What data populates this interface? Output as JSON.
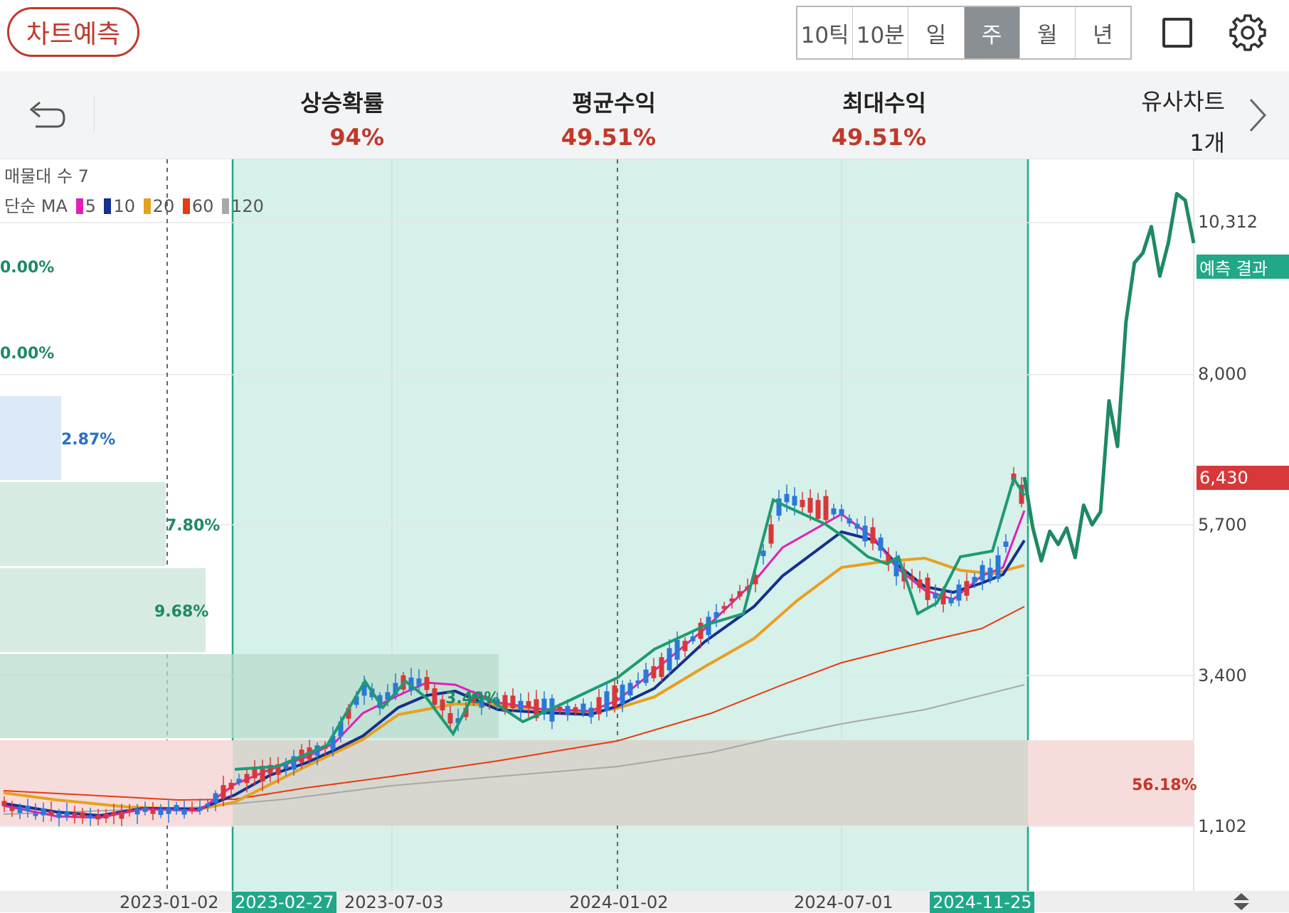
{
  "header": {
    "predict_button": "차트예측",
    "periods": [
      "10틱",
      "10분",
      "일",
      "주",
      "월",
      "년"
    ],
    "active_period": "주"
  },
  "stats": {
    "rise_prob_label": "상승확률",
    "rise_prob_value": "94%",
    "avg_return_label": "평균수익",
    "avg_return_value": "49.51%",
    "max_return_label": "최대수익",
    "max_return_value": "49.51%",
    "similar_label": "유사차트",
    "similar_count": "1개"
  },
  "legend": {
    "volume_profile": "매물대 수 7",
    "ma_label": "단순 MA",
    "ma_periods": [
      "5",
      "10",
      "20",
      "60",
      "120"
    ]
  },
  "colors": {
    "ma5": "#e020b8",
    "ma10": "#16308e",
    "ma20": "#e8a020",
    "ma60": "#e83a10",
    "ma120": "#a8a8a8",
    "up": "#d8383a",
    "down": "#2a78d8",
    "forecast": "#1e8a64",
    "shade": "#d6f0ea"
  },
  "volume_profile_labels": [
    "0.00%",
    "0.00%",
    "2.87%",
    "7.80%",
    "9.68%",
    "3.49%",
    "56.18%"
  ],
  "volume_profile_values": [
    0.0,
    0.0,
    2.87,
    7.8,
    9.68,
    3.49,
    56.18
  ],
  "chart_data": {
    "type": "line",
    "y_ticks": [
      "10,312",
      "8,000",
      "6,430",
      "5,700",
      "3,400",
      "1,102"
    ],
    "current_price": "6,430",
    "forecast_tag": "예측 결과",
    "x_labels": [
      "2023-01-02",
      "2023-02-27",
      "2023-07-03",
      "2024-01-02",
      "2024-07-01",
      "2024-11-25"
    ],
    "highlight_dates": [
      "2023-02-27",
      "2024-11-25"
    ],
    "forecast_values": [
      6430,
      5650,
      5150,
      5600,
      5400,
      5650,
      5200,
      6000,
      5700,
      5900,
      7600,
      6900,
      8800,
      9700,
      9850,
      10250,
      9500,
      10000,
      10750,
      10650,
      10000
    ]
  }
}
